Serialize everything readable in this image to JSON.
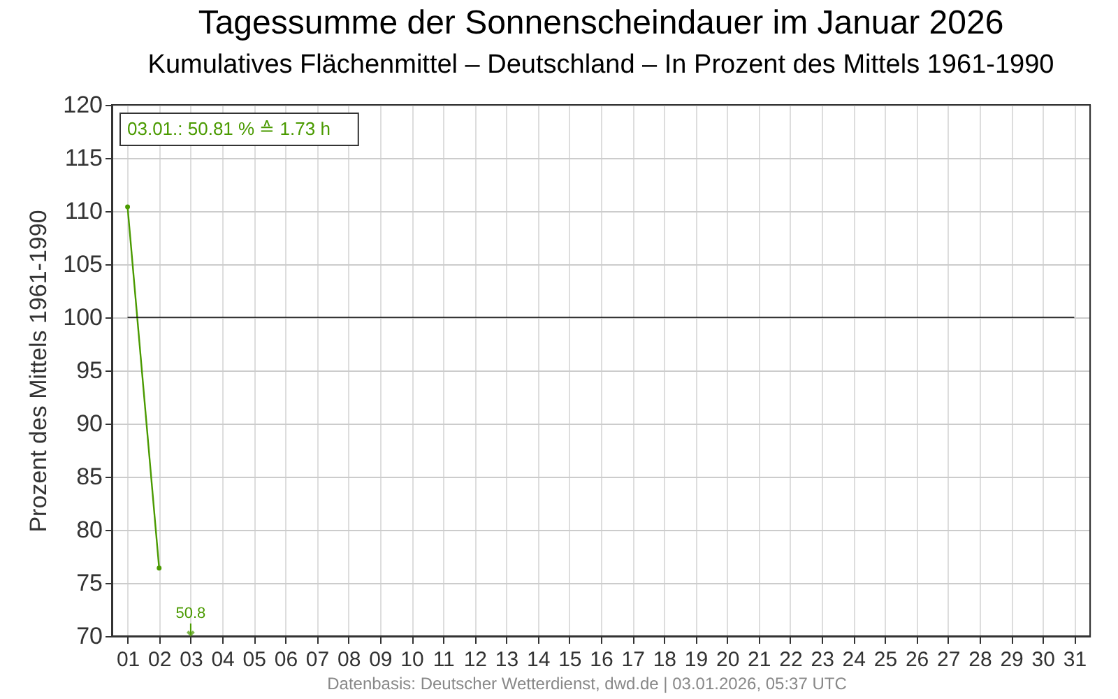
{
  "chart_data": {
    "type": "line",
    "title": "Tagessumme der Sonnenscheindauer im Januar 2026",
    "subtitle": "Kumulatives Flächenmittel – Deutschland – In Prozent des Mittels 1961-1990",
    "ylabel": "Prozent des Mittels 1961-1990",
    "categories": [
      "01",
      "02",
      "03",
      "04",
      "05",
      "06",
      "07",
      "08",
      "09",
      "10",
      "11",
      "12",
      "13",
      "14",
      "15",
      "16",
      "17",
      "18",
      "19",
      "20",
      "21",
      "22",
      "23",
      "24",
      "25",
      "26",
      "27",
      "28",
      "29",
      "30",
      "31"
    ],
    "series": [
      {
        "color": "#4a9a00",
        "values": [
          110.4,
          76.4,
          null,
          null,
          null,
          null,
          null,
          null,
          null,
          null,
          null,
          null,
          null,
          null,
          null,
          null,
          null,
          null,
          null,
          null,
          null,
          null,
          null,
          null,
          null,
          null,
          null,
          null,
          null,
          null,
          null
        ]
      }
    ],
    "ylim": [
      70,
      120
    ],
    "yticks": [
      70,
      75,
      80,
      85,
      90,
      95,
      100,
      105,
      110,
      115,
      120
    ],
    "grid": true,
    "marker": "circle",
    "line_style": "solid",
    "legend": false,
    "ref_lines": [
      {
        "axis": "y",
        "value": 100,
        "color": "#000000"
      }
    ],
    "annotations": [
      "03.01.: 50.81 % ≙ 1.73 h",
      "50.8",
      "Datenbasis: Deutscher Wetterdienst, dwd.de | 03.01.2026, 05:37 UTC"
    ]
  }
}
